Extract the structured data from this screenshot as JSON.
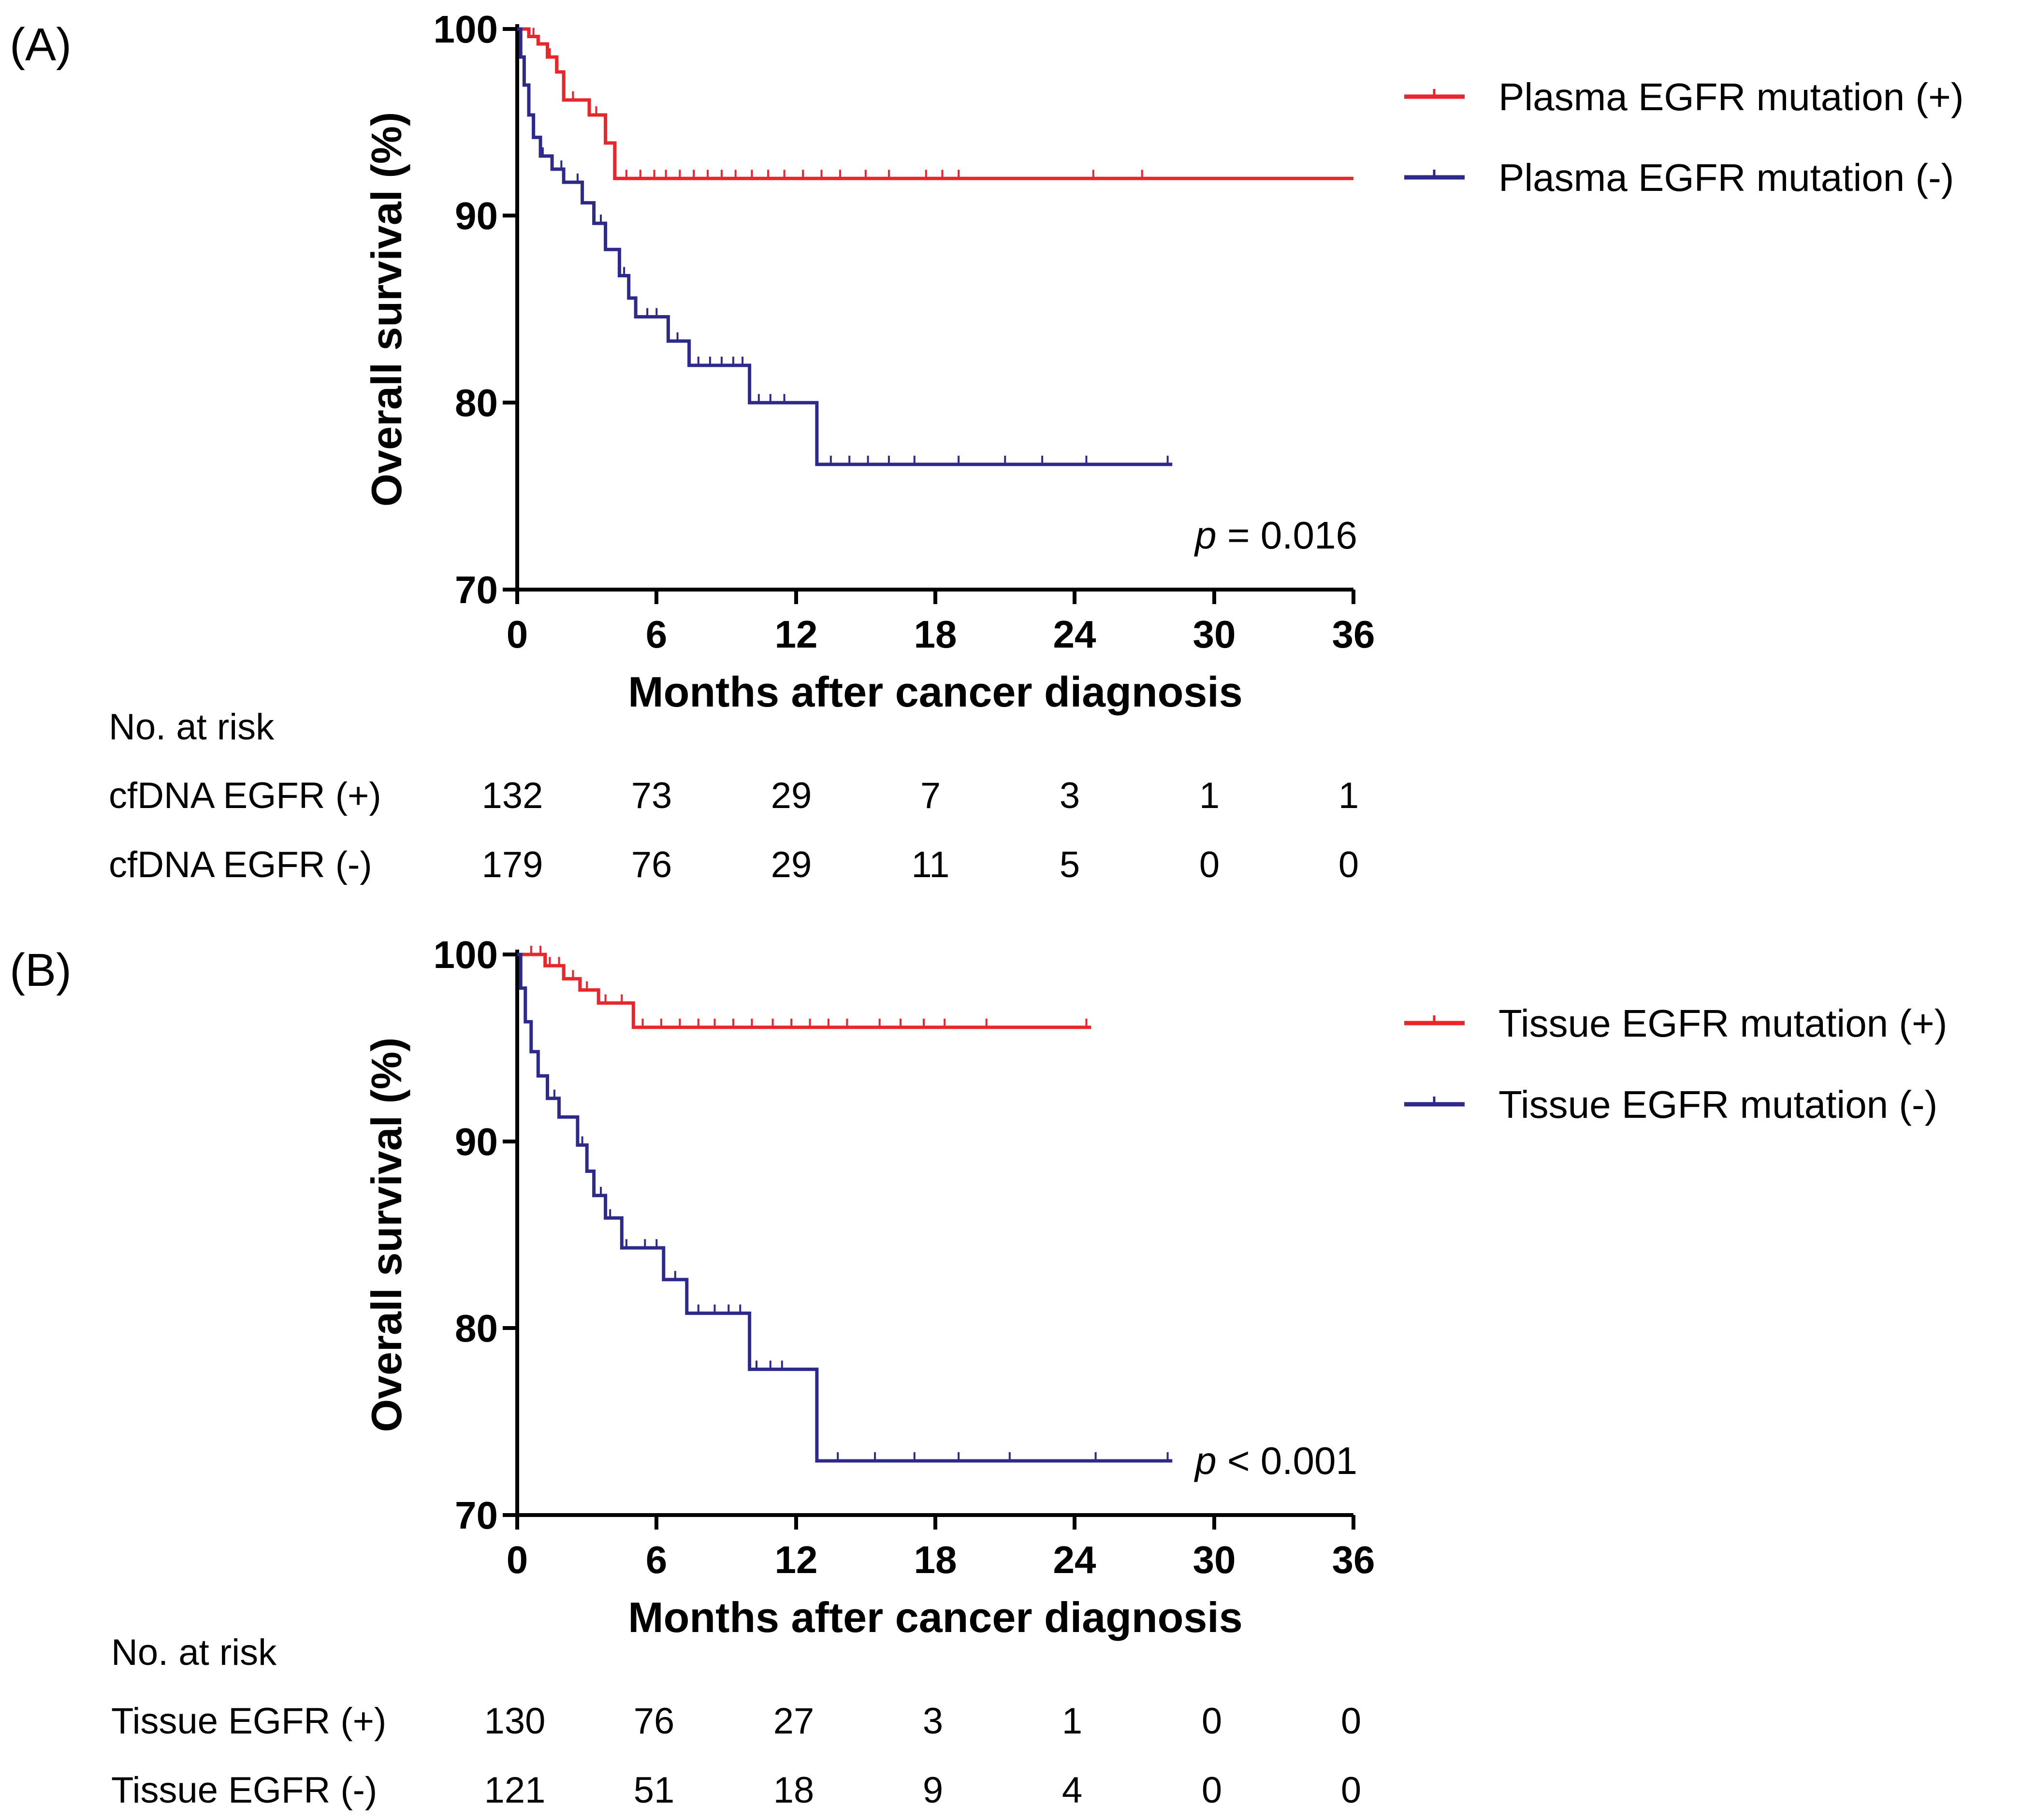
{
  "chart_data": [
    {
      "type": "line",
      "panel_label": "(A)",
      "ylabel": "Overall survival (%)",
      "xlabel": "Months after cancer diagnosis",
      "xlim": [
        0,
        36
      ],
      "ylim": [
        70,
        100
      ],
      "x_ticks": [
        "0",
        "6",
        "12",
        "18",
        "24",
        "30",
        "36"
      ],
      "y_ticks": [
        "70",
        "80",
        "90",
        "100"
      ],
      "p_label": "p",
      "p_text": " = 0.016",
      "series": [
        {
          "name": "Plasma EGFR mutation (+)",
          "color": "#e8262b",
          "steps": [
            [
              0,
              100
            ],
            [
              0.5,
              99.6
            ],
            [
              0.9,
              99.2
            ],
            [
              1.3,
              98.5
            ],
            [
              1.7,
              97.7
            ],
            [
              2.0,
              96.2
            ],
            [
              3.1,
              95.4
            ],
            [
              3.8,
              93.9
            ],
            [
              4.2,
              92.0
            ],
            [
              36,
              92.0
            ]
          ],
          "censors": [
            0.7,
            1.4,
            2.4,
            3.4,
            4.7,
            5.3,
            5.9,
            6.4,
            7.0,
            7.6,
            8.2,
            8.8,
            9.4,
            10.1,
            10.8,
            11.5,
            12.3,
            13.1,
            13.9,
            15.0,
            16.0,
            17.6,
            18.3,
            19.0,
            24.8,
            26.9
          ]
        },
        {
          "name": "Plasma EGFR mutation (-)",
          "color": "#2e2a8c",
          "steps": [
            [
              0,
              100
            ],
            [
              0.15,
              98.5
            ],
            [
              0.3,
              97.0
            ],
            [
              0.5,
              95.4
            ],
            [
              0.7,
              94.2
            ],
            [
              1.0,
              93.2
            ],
            [
              1.5,
              92.5
            ],
            [
              2.0,
              91.8
            ],
            [
              2.8,
              90.7
            ],
            [
              3.3,
              89.6
            ],
            [
              3.8,
              88.2
            ],
            [
              4.4,
              86.8
            ],
            [
              4.8,
              85.6
            ],
            [
              5.1,
              84.6
            ],
            [
              6.5,
              83.3
            ],
            [
              7.4,
              82.0
            ],
            [
              10.0,
              80.0
            ],
            [
              12.9,
              76.7
            ],
            [
              28.2,
              76.7
            ]
          ],
          "end": 28.2,
          "censors": [
            1.1,
            1.9,
            2.6,
            3.6,
            4.6,
            5.6,
            6.0,
            6.9,
            7.8,
            8.3,
            8.8,
            9.3,
            9.7,
            10.4,
            10.9,
            11.5,
            13.5,
            14.3,
            15.1,
            16.0,
            17.1,
            19.0,
            21.0,
            22.6,
            24.5,
            28.0
          ]
        }
      ],
      "risk_table": {
        "header": "No. at risk",
        "rows": [
          {
            "label": "cfDNA EGFR (+)",
            "values": [
              "132",
              "73",
              "29",
              "7",
              "3",
              "1",
              "1"
            ]
          },
          {
            "label": "cfDNA EGFR (-)",
            "values": [
              "179",
              "76",
              "29",
              "11",
              "5",
              "0",
              "0"
            ]
          }
        ]
      }
    },
    {
      "type": "line",
      "panel_label": "(B)",
      "ylabel": "Overall survival (%)",
      "xlabel": "Months after cancer diagnosis",
      "xlim": [
        0,
        36
      ],
      "ylim": [
        70,
        100
      ],
      "x_ticks": [
        "0",
        "6",
        "12",
        "18",
        "24",
        "30",
        "36"
      ],
      "y_ticks": [
        "70",
        "80",
        "90",
        "100"
      ],
      "p_label": "p",
      "p_text": " < 0.001",
      "series": [
        {
          "name": "Tissue EGFR mutation (+)",
          "color": "#e8262b",
          "steps": [
            [
              0,
              100
            ],
            [
              1.2,
              99.4
            ],
            [
              2.0,
              98.7
            ],
            [
              2.7,
              98.1
            ],
            [
              3.5,
              97.4
            ],
            [
              5.0,
              96.1
            ],
            [
              24.7,
              96.1
            ]
          ],
          "end": 24.7,
          "censors": [
            0.6,
            1.0,
            1.4,
            1.8,
            2.4,
            3.0,
            3.8,
            4.5,
            5.4,
            6.2,
            7.0,
            7.8,
            8.5,
            9.3,
            10.1,
            11.0,
            11.8,
            12.6,
            13.4,
            14.2,
            15.6,
            16.5,
            17.5,
            18.4,
            20.2,
            24.5
          ]
        },
        {
          "name": "Tissue EGFR mutation (-)",
          "color": "#2e2a8c",
          "steps": [
            [
              0,
              100
            ],
            [
              0.15,
              98.2
            ],
            [
              0.35,
              96.4
            ],
            [
              0.6,
              94.8
            ],
            [
              0.9,
              93.5
            ],
            [
              1.3,
              92.3
            ],
            [
              1.8,
              91.3
            ],
            [
              2.6,
              89.8
            ],
            [
              3.0,
              88.4
            ],
            [
              3.3,
              87.1
            ],
            [
              3.8,
              85.9
            ],
            [
              4.5,
              84.3
            ],
            [
              6.3,
              82.6
            ],
            [
              7.3,
              80.8
            ],
            [
              10.0,
              77.8
            ],
            [
              12.9,
              72.9
            ],
            [
              28.2,
              72.9
            ]
          ],
          "end": 28.2,
          "censors": [
            1.6,
            2.8,
            3.6,
            4.0,
            4.7,
            5.5,
            6.0,
            6.8,
            7.8,
            8.5,
            9.1,
            9.6,
            10.3,
            10.9,
            11.4,
            13.8,
            15.4,
            17.1,
            19.0,
            21.2,
            24.9,
            28.0
          ]
        }
      ],
      "risk_table": {
        "header": "No. at risk",
        "rows": [
          {
            "label": "Tissue EGFR (+)",
            "values": [
              "130",
              "76",
              "27",
              "3",
              "1",
              "0",
              "0"
            ]
          },
          {
            "label": "Tissue EGFR (-)",
            "values": [
              "121",
              "51",
              "18",
              "9",
              "4",
              "0",
              "0"
            ]
          }
        ]
      }
    }
  ]
}
